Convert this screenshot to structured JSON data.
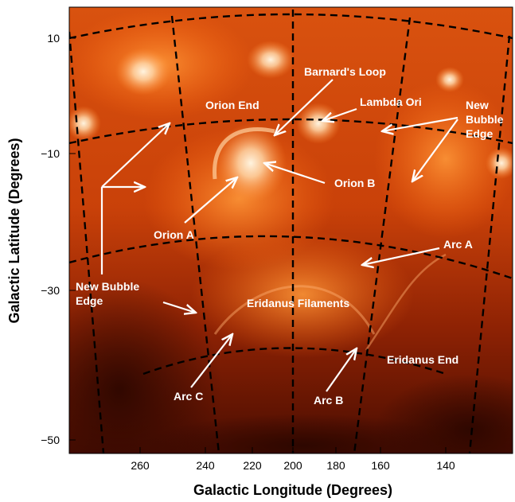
{
  "figure": {
    "x_axis_title": "Galactic Longitude (Degrees)",
    "y_axis_title": "Galactic Latitude (Degrees)",
    "x_tick_labels": [
      "260",
      "240",
      "220",
      "200",
      "180",
      "160",
      "140"
    ],
    "y_tick_labels": [
      "10",
      "−10",
      "−30",
      "−50"
    ],
    "annotations": {
      "barnards_loop": "Barnard's Loop",
      "orion_end": "Orion End",
      "lambda_ori": "Lambda Ori",
      "new_bubble_edge_right_1": "New",
      "new_bubble_edge_right_2": "Bubble",
      "new_bubble_edge_right_3": "Edge",
      "orion_b": "Orion B",
      "orion_a": "Orion A",
      "arc_a": "Arc A",
      "new_bubble_edge_left_1": "New Bubble",
      "new_bubble_edge_left_2": "Edge",
      "eridanus_filaments": "Eridanus Filaments",
      "eridanus_end": "Eridanus End",
      "arc_c": "Arc C",
      "arc_b": "Arc B"
    },
    "colors": {
      "background": "#ffffff",
      "map_dark": "#3a0a00",
      "map_mid": "#c43a08",
      "map_bright": "#ff7a1a",
      "map_glow": "#ffe6c0",
      "annotation_text": "#ffffff",
      "grid_lines": "#000000"
    }
  }
}
